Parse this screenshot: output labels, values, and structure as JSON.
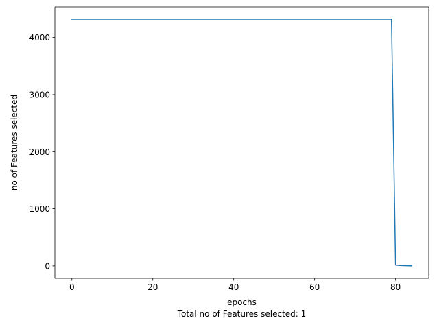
{
  "chart_data": {
    "type": "line",
    "title": "",
    "xlabel": "epochs",
    "ylabel": "no of Features selected",
    "caption": "Total no of Features selected: 1",
    "xlim": [
      -4.2,
      88.2
    ],
    "ylim": [
      -217,
      4536
    ],
    "xticks": [
      0,
      20,
      40,
      60,
      80
    ],
    "yticks": [
      0,
      1000,
      2000,
      3000,
      4000
    ],
    "grid": false,
    "series": [
      {
        "color": "#1f77b4",
        "x": [
          0,
          10,
          20,
          30,
          40,
          50,
          60,
          70,
          79,
          80,
          81,
          82,
          83,
          84
        ],
        "y": [
          4320,
          4320,
          4320,
          4320,
          4320,
          4320,
          4320,
          4320,
          4320,
          15,
          8,
          5,
          3,
          1
        ]
      }
    ]
  }
}
